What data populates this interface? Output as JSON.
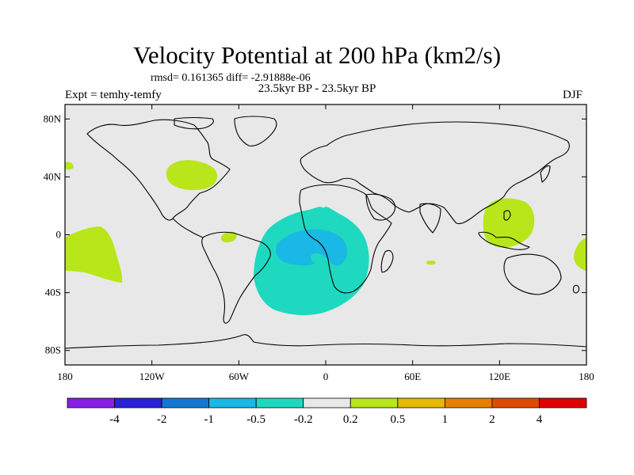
{
  "header": {
    "title": "Velocity Potential at 200 hPa (km2/s)",
    "stats": "rmsd= 0.161365  diff= -2.91888e-06",
    "subtitle": "23.5kyr BP - 23.5kyr BP",
    "experiment": "Expt = temhy-temfy",
    "season": "DJF"
  },
  "axes": {
    "y_ticks": [
      "80N",
      "40N",
      "0",
      "40S",
      "80S"
    ],
    "y_values": [
      80,
      40,
      0,
      -40,
      -80
    ],
    "x_ticks": [
      "180",
      "120W",
      "60W",
      "0",
      "60E",
      "120E",
      "180"
    ],
    "x_values": [
      -180,
      -120,
      -60,
      0,
      60,
      120,
      180
    ]
  },
  "colorbar": {
    "colors": [
      "#8a1ee6",
      "#2a22d8",
      "#1577d2",
      "#1ab8e4",
      "#1ed9bf",
      "#e8e8e8",
      "#b8e61a",
      "#e6b800",
      "#e67e00",
      "#e04a00",
      "#e00000"
    ],
    "labels": [
      "-4",
      "-2",
      "-1",
      "-0.5",
      "-0.2",
      "0.2",
      "0.5",
      "1",
      "2",
      "4"
    ]
  },
  "map": {
    "ocean_color": "#e8e8e8",
    "anomalies": [
      {
        "name": "north-america-positive",
        "level": "0.2 to 0.5",
        "color": "#b8e61a"
      },
      {
        "name": "east-pacific-positive",
        "level": "0.2 to 0.5",
        "color": "#b8e61a"
      },
      {
        "name": "south-america-positive",
        "level": "0.2 to 0.5",
        "color": "#b8e61a"
      },
      {
        "name": "maritime-continent-positive",
        "level": "0.2 to 0.5",
        "color": "#b8e61a"
      },
      {
        "name": "southwest-pacific-positive",
        "level": "0.2 to 0.5",
        "color": "#b8e61a"
      },
      {
        "name": "indian-ocean-positive",
        "level": "0.2 to 0.5",
        "color": "#b8e61a"
      },
      {
        "name": "north-pacific-positive",
        "level": "0.2 to 0.5",
        "color": "#b8e61a"
      },
      {
        "name": "south-atlantic-negative",
        "level": "-0.5 to -0.2",
        "color": "#1ed9bf"
      },
      {
        "name": "south-atlantic-core-negative",
        "level": "-1 to -0.5",
        "color": "#1ab8e4"
      }
    ]
  }
}
